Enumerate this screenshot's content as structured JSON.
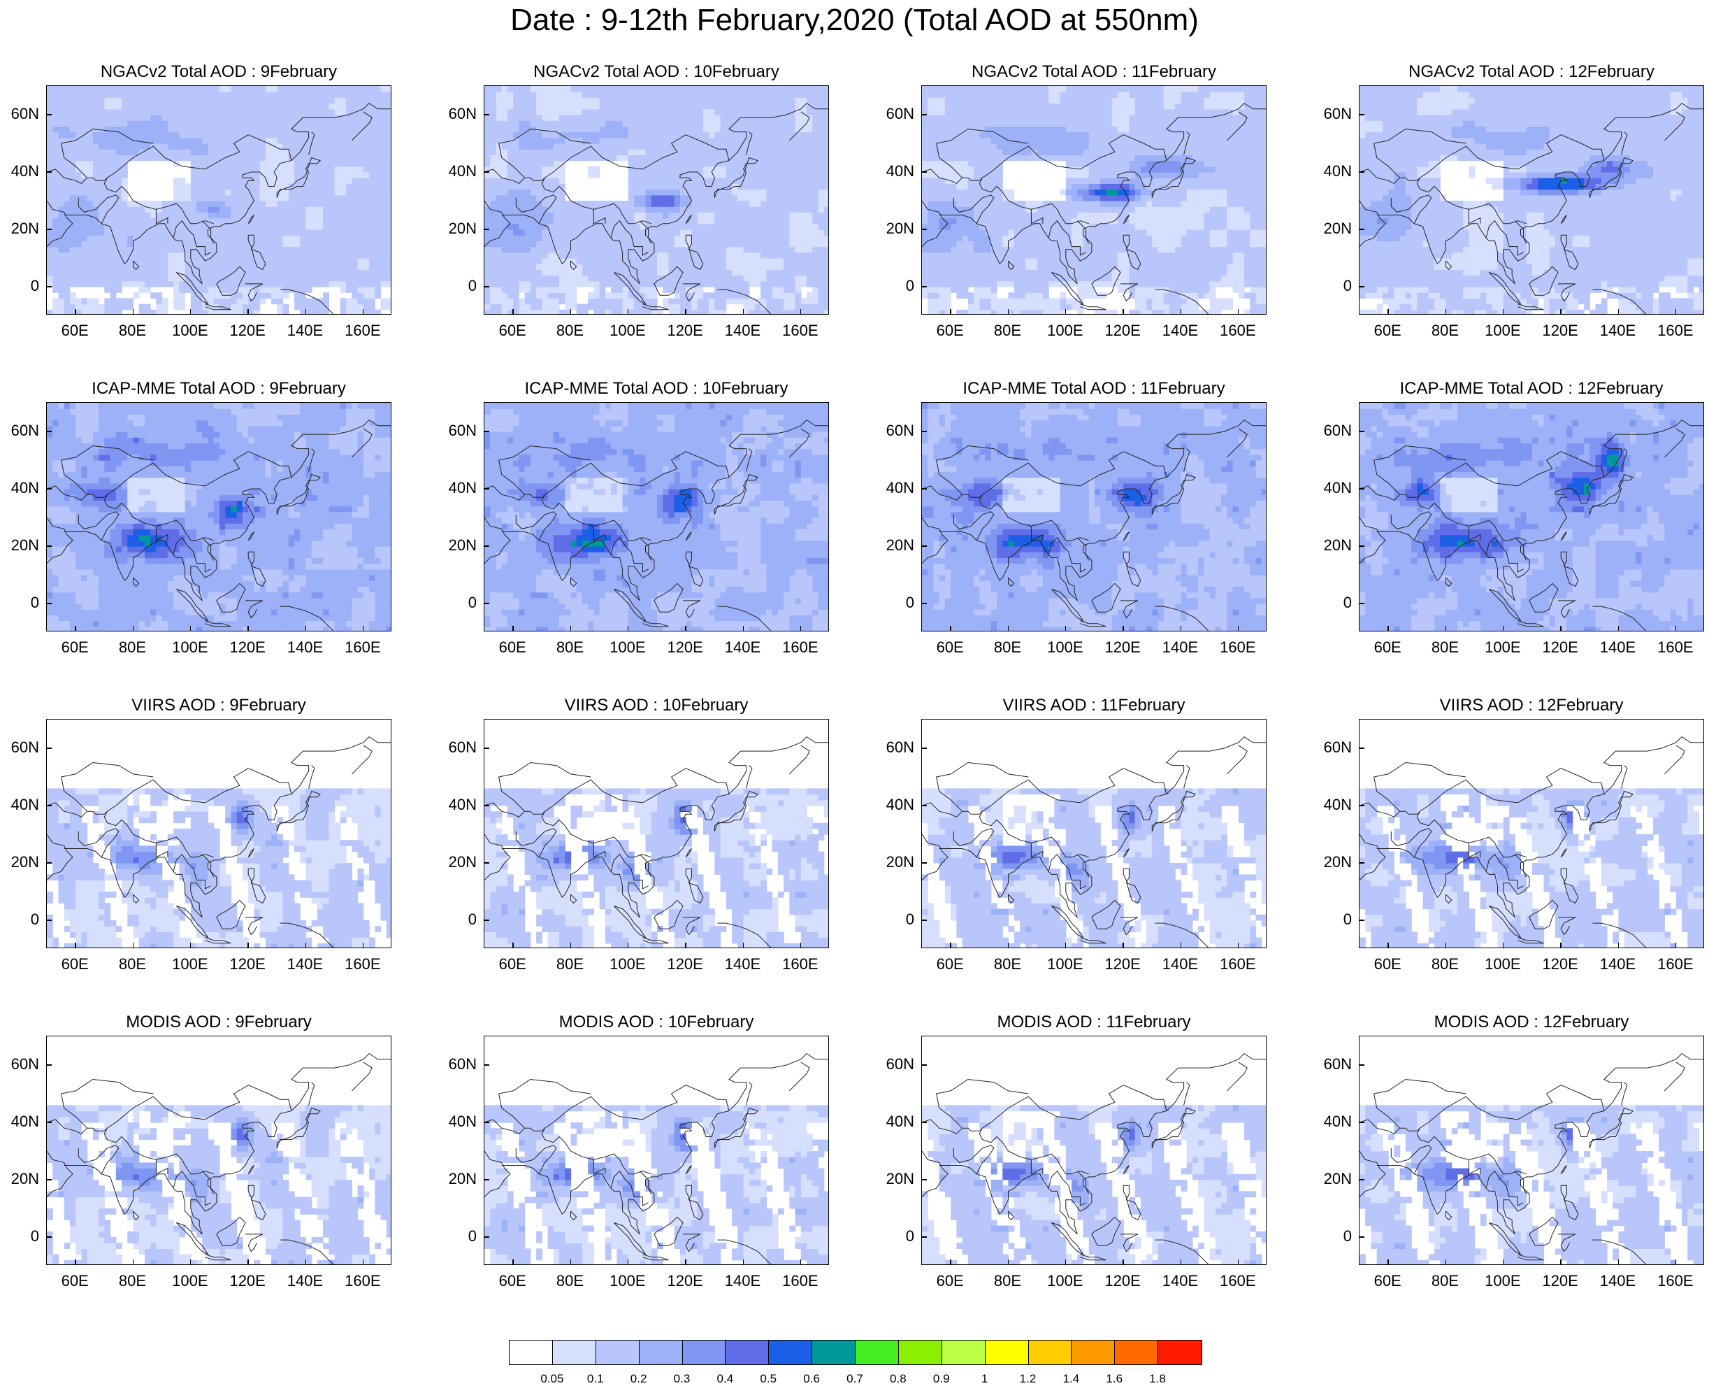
{
  "title": "Date : 9-12th February,2020 (Total AOD at 550nm)",
  "axes": {
    "lat_labels": [
      "60N",
      "40N",
      "20N",
      "0"
    ],
    "lat_values": [
      60,
      40,
      20,
      0
    ],
    "lon_labels": [
      "60E",
      "80E",
      "100E",
      "120E",
      "140E",
      "160E"
    ],
    "lon_values": [
      60,
      80,
      100,
      120,
      140,
      160
    ],
    "lat_range": [
      -10,
      70
    ],
    "lon_range": [
      50,
      170
    ]
  },
  "panels": [
    {
      "title": "NGACv2 Total AOD : 9February",
      "model": "NGACv2",
      "day": 9
    },
    {
      "title": "NGACv2 Total AOD : 10February",
      "model": "NGACv2",
      "day": 10
    },
    {
      "title": "NGACv2 Total AOD : 11February",
      "model": "NGACv2",
      "day": 11
    },
    {
      "title": "NGACv2 Total AOD : 12February",
      "model": "NGACv2",
      "day": 12
    },
    {
      "title": "ICAP-MME Total AOD : 9February",
      "model": "ICAP",
      "day": 9
    },
    {
      "title": "ICAP-MME Total AOD : 10February",
      "model": "ICAP",
      "day": 10
    },
    {
      "title": "ICAP-MME Total AOD : 11February",
      "model": "ICAP",
      "day": 11
    },
    {
      "title": "ICAP-MME Total AOD : 12February",
      "model": "ICAP",
      "day": 12
    },
    {
      "title": "VIIRS AOD : 9February",
      "model": "VIIRS",
      "day": 9
    },
    {
      "title": "VIIRS AOD : 10February",
      "model": "VIIRS",
      "day": 10
    },
    {
      "title": "VIIRS AOD : 11February",
      "model": "VIIRS",
      "day": 11
    },
    {
      "title": "VIIRS AOD : 12February",
      "model": "VIIRS",
      "day": 12
    },
    {
      "title": "MODIS AOD : 9February",
      "model": "MODIS",
      "day": 9
    },
    {
      "title": "MODIS AOD : 10February",
      "model": "MODIS",
      "day": 10
    },
    {
      "title": "MODIS AOD : 11February",
      "model": "MODIS",
      "day": 11
    },
    {
      "title": "MODIS AOD : 12February",
      "model": "MODIS",
      "day": 12
    }
  ],
  "colorbar": {
    "labels": [
      "0.05",
      "0.1",
      "0.2",
      "0.3",
      "0.4",
      "0.5",
      "0.6",
      "0.7",
      "0.8",
      "0.9",
      "1",
      "1.2",
      "1.4",
      "1.6",
      "1.8"
    ],
    "colors": [
      "#ffffff",
      "#d6dffd",
      "#b8c6fb",
      "#9cb1f8",
      "#7f96f2",
      "#5f6ee8",
      "#1a5fe6",
      "#009999",
      "#44ee22",
      "#88f000",
      "#bbff44",
      "#ffff00",
      "#ffcc00",
      "#ff9900",
      "#ff6a00",
      "#ff1a00"
    ]
  }
}
